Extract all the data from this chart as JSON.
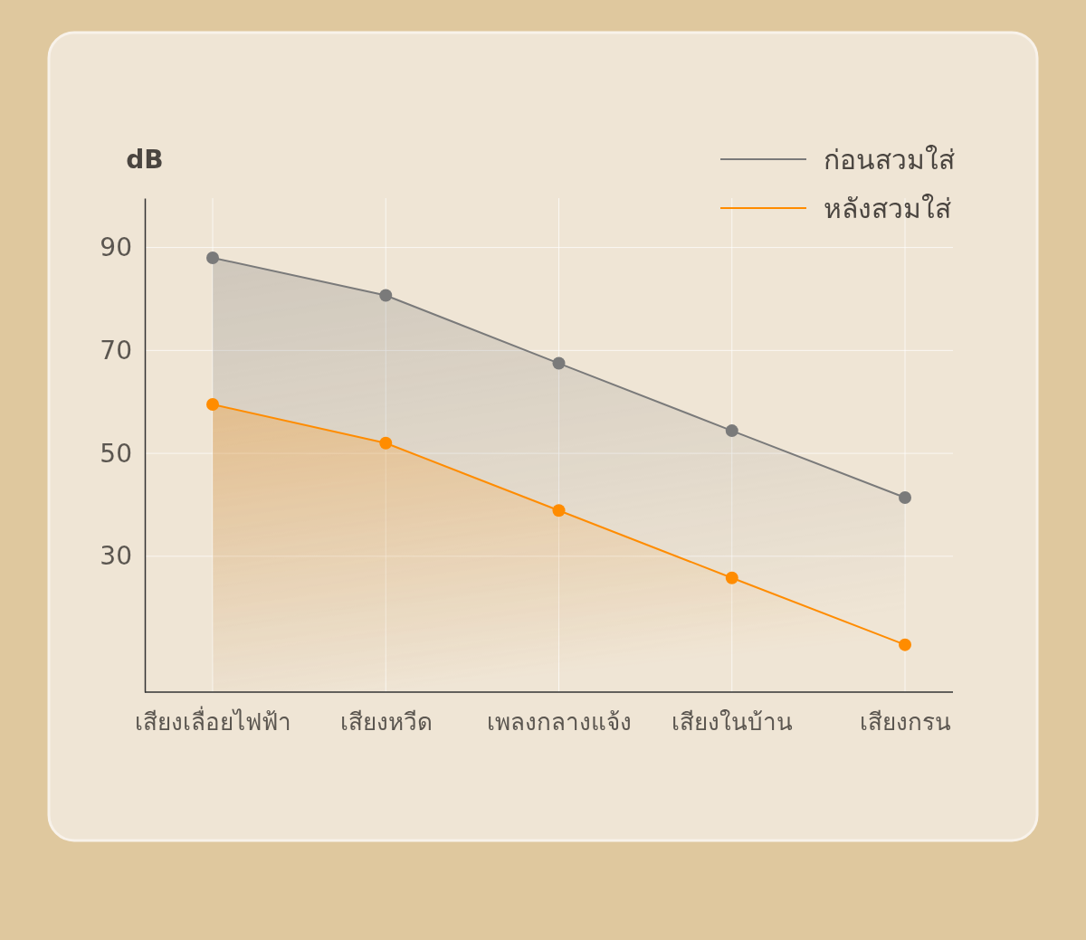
{
  "chart_data": {
    "type": "area",
    "ylabel": "dB",
    "categories": [
      "เสียงเลื่อยไฟฟ้า",
      "เสียงหวีด",
      "เพลงกลางแจ้ง",
      "เสียงในบ้าน",
      "เสียงกรน"
    ],
    "ylim": [
      3.6,
      99.6
    ],
    "yticks": [
      30,
      50,
      70,
      90
    ],
    "series": [
      {
        "name": "ก่อนสวมใส่",
        "color": "#7a7a7a",
        "values": [
          88.0,
          80.7,
          67.5,
          54.4,
          41.4
        ]
      },
      {
        "name": "หลังสวมใส่",
        "color": "#ff8c00",
        "values": [
          59.5,
          52.0,
          38.9,
          25.8,
          12.8
        ]
      }
    ],
    "grid": true,
    "legend": "top right",
    "marker": "circle",
    "line_style": "solid"
  }
}
